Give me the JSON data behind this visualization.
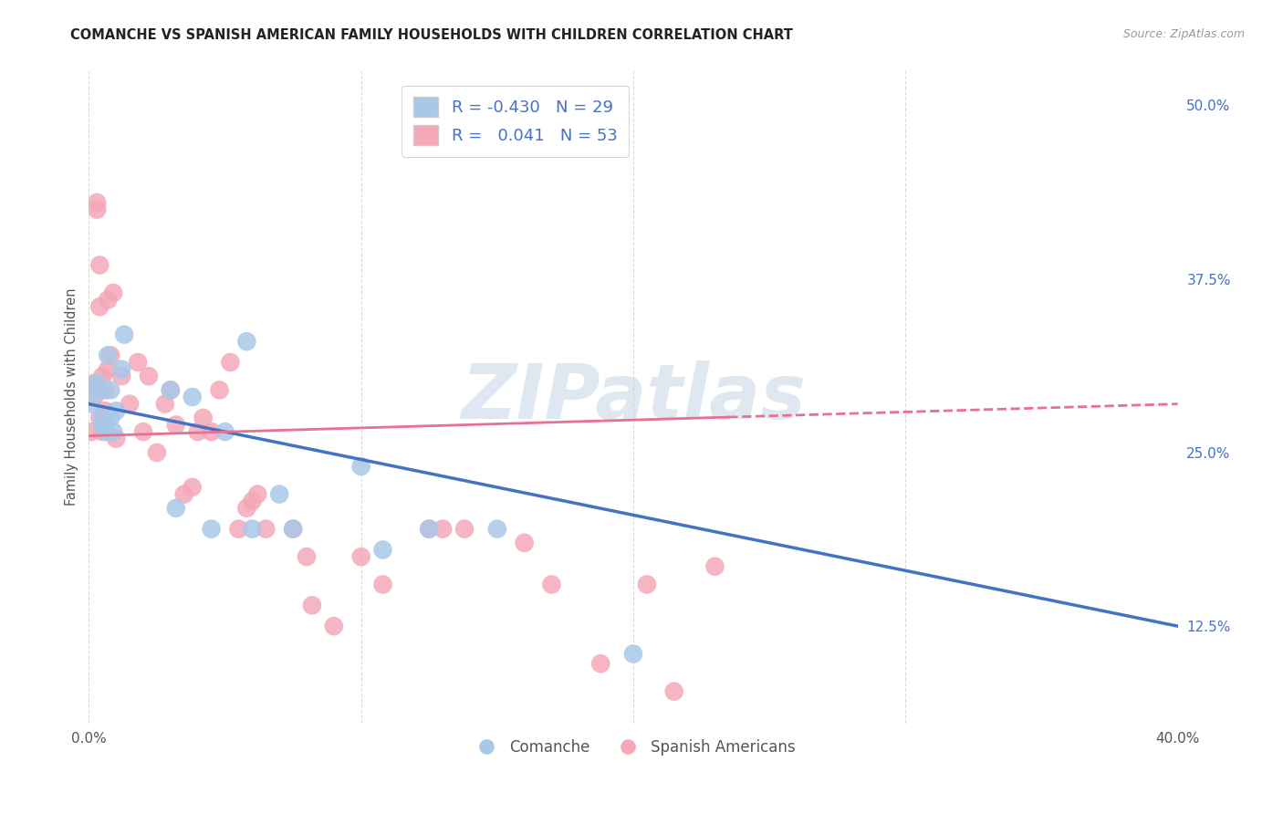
{
  "title": "COMANCHE VS SPANISH AMERICAN FAMILY HOUSEHOLDS WITH CHILDREN CORRELATION CHART",
  "source": "Source: ZipAtlas.com",
  "ylabel": "Family Households with Children",
  "xlim": [
    0.0,
    0.4
  ],
  "ylim": [
    0.055,
    0.525
  ],
  "xticks": [
    0.0,
    0.1,
    0.2,
    0.3,
    0.4
  ],
  "xtick_labels": [
    "0.0%",
    "",
    "",
    "",
    "40.0%"
  ],
  "ytick_labels_right": [
    "50.0%",
    "37.5%",
    "25.0%",
    "12.5%"
  ],
  "ytick_positions_right": [
    0.5,
    0.375,
    0.25,
    0.125
  ],
  "comanche_color": "#a8c8e8",
  "spanish_color": "#f4a8b8",
  "comanche_line_color": "#4472c4",
  "spanish_line_color": "#e87090",
  "comanche_R": -0.43,
  "comanche_N": 29,
  "spanish_R": 0.041,
  "spanish_N": 53,
  "comanche_x": [
    0.001,
    0.003,
    0.003,
    0.004,
    0.005,
    0.005,
    0.006,
    0.006,
    0.007,
    0.008,
    0.008,
    0.009,
    0.01,
    0.012,
    0.013,
    0.03,
    0.032,
    0.038,
    0.045,
    0.05,
    0.058,
    0.06,
    0.07,
    0.075,
    0.1,
    0.108,
    0.125,
    0.15,
    0.2
  ],
  "comanche_y": [
    0.285,
    0.3,
    0.295,
    0.295,
    0.275,
    0.27,
    0.27,
    0.265,
    0.32,
    0.295,
    0.275,
    0.265,
    0.28,
    0.31,
    0.335,
    0.295,
    0.21,
    0.29,
    0.195,
    0.265,
    0.33,
    0.195,
    0.22,
    0.195,
    0.24,
    0.18,
    0.195,
    0.195,
    0.105
  ],
  "spanish_x": [
    0.001,
    0.002,
    0.002,
    0.003,
    0.003,
    0.004,
    0.004,
    0.004,
    0.005,
    0.005,
    0.006,
    0.006,
    0.007,
    0.007,
    0.008,
    0.009,
    0.01,
    0.012,
    0.015,
    0.018,
    0.02,
    0.022,
    0.025,
    0.028,
    0.03,
    0.032,
    0.035,
    0.038,
    0.04,
    0.042,
    0.045,
    0.048,
    0.052,
    0.055,
    0.058,
    0.06,
    0.062,
    0.065,
    0.075,
    0.08,
    0.082,
    0.09,
    0.1,
    0.108,
    0.125,
    0.13,
    0.138,
    0.16,
    0.17,
    0.188,
    0.205,
    0.215,
    0.23
  ],
  "spanish_y": [
    0.265,
    0.3,
    0.29,
    0.425,
    0.43,
    0.385,
    0.355,
    0.275,
    0.265,
    0.305,
    0.28,
    0.295,
    0.31,
    0.36,
    0.32,
    0.365,
    0.26,
    0.305,
    0.285,
    0.315,
    0.265,
    0.305,
    0.25,
    0.285,
    0.295,
    0.27,
    0.22,
    0.225,
    0.265,
    0.275,
    0.265,
    0.295,
    0.315,
    0.195,
    0.21,
    0.215,
    0.22,
    0.195,
    0.195,
    0.175,
    0.14,
    0.125,
    0.175,
    0.155,
    0.195,
    0.195,
    0.195,
    0.185,
    0.155,
    0.098,
    0.155,
    0.078,
    0.168
  ],
  "background_color": "#ffffff",
  "grid_color": "#d8d8d8",
  "watermark_text": "ZIPatlas",
  "watermark_color": "#b8cede",
  "watermark_alpha": 0.45,
  "comanche_line_intercept": 0.285,
  "comanche_line_end": 0.125,
  "spanish_line_intercept": 0.262,
  "spanish_line_end": 0.285
}
